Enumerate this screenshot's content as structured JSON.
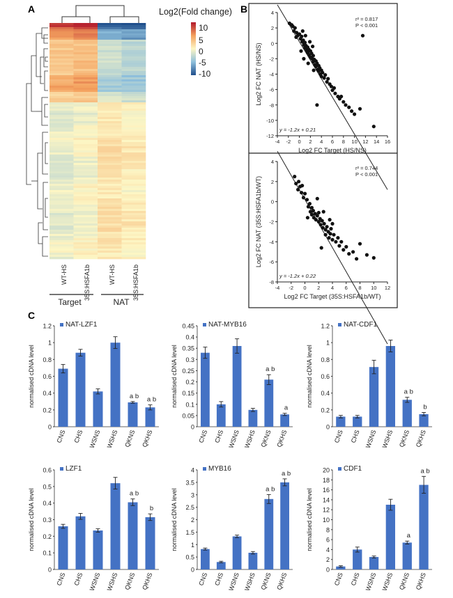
{
  "panel_labels": {
    "a": "A",
    "b": "B",
    "c": "C"
  },
  "heatmap": {
    "legend_title": "Log2(Fold change)",
    "legend_ticks": [
      "10",
      "5",
      "0",
      "-5",
      "-10"
    ],
    "columns": [
      "WT-HS",
      "35S:HSFA1b",
      "WT-HS",
      "35S:HSFA1b"
    ],
    "groups": [
      "Target",
      "NAT"
    ]
  },
  "chart_data": [
    {
      "type": "scatter",
      "panel": "B-top",
      "xlabel": "Log2 FC Target (HS/NS)",
      "ylabel": "Log2 FC NAT (HS/NS)",
      "xlim": [
        -4,
        16
      ],
      "ylim": [
        -12,
        4
      ],
      "xticks": [
        -4,
        -2,
        0,
        2,
        4,
        6,
        8,
        10,
        12,
        14,
        16
      ],
      "yticks": [
        4,
        2,
        0,
        -2,
        -4,
        -6,
        -8,
        -10,
        -12
      ],
      "stats": [
        "r² = 0.817",
        "P < 0.001"
      ],
      "equation": "y = -1.2x + 0.21",
      "fit": {
        "slope": -1.2,
        "intercept": 0.21
      },
      "points": [
        [
          -1.8,
          2.6
        ],
        [
          -1.4,
          2.4
        ],
        [
          -1.2,
          2.2
        ],
        [
          -1.0,
          1.6
        ],
        [
          -0.8,
          2.0
        ],
        [
          -0.5,
          1.4
        ],
        [
          -0.3,
          1.0
        ],
        [
          0.0,
          1.2
        ],
        [
          0.2,
          0.6
        ],
        [
          0.4,
          0.9
        ],
        [
          0.5,
          0.2
        ],
        [
          0.7,
          0.4
        ],
        [
          0.8,
          -0.2
        ],
        [
          1.0,
          0.1
        ],
        [
          1.0,
          -0.6
        ],
        [
          1.2,
          -0.3
        ],
        [
          1.3,
          -0.9
        ],
        [
          1.5,
          -0.5
        ],
        [
          1.5,
          -1.2
        ],
        [
          1.7,
          -0.8
        ],
        [
          1.8,
          -1.5
        ],
        [
          2.0,
          -1.0
        ],
        [
          2.0,
          -1.8
        ],
        [
          2.2,
          -1.3
        ],
        [
          2.3,
          -2.0
        ],
        [
          2.5,
          -1.6
        ],
        [
          2.5,
          -2.4
        ],
        [
          2.7,
          -2.1
        ],
        [
          2.8,
          -2.8
        ],
        [
          3.0,
          -2.3
        ],
        [
          3.0,
          -3.0
        ],
        [
          3.2,
          -2.6
        ],
        [
          3.3,
          -3.4
        ],
        [
          3.5,
          -2.9
        ],
        [
          3.5,
          -3.6
        ],
        [
          3.7,
          -3.2
        ],
        [
          3.8,
          -4.0
        ],
        [
          4.0,
          -3.5
        ],
        [
          4.0,
          -4.3
        ],
        [
          4.2,
          -3.8
        ],
        [
          4.5,
          -4.5
        ],
        [
          4.7,
          -4.1
        ],
        [
          5.0,
          -5.0
        ],
        [
          5.2,
          -4.6
        ],
        [
          5.5,
          -5.3
        ],
        [
          5.8,
          -5.6
        ],
        [
          6.0,
          -6.1
        ],
        [
          6.3,
          -5.8
        ],
        [
          6.5,
          -6.5
        ],
        [
          7.0,
          -6.9
        ],
        [
          7.3,
          -7.2
        ],
        [
          7.6,
          -6.9
        ],
        [
          8.0,
          -7.6
        ],
        [
          8.4,
          -8.0
        ],
        [
          9.0,
          -8.3
        ],
        [
          9.5,
          -8.8
        ],
        [
          10.0,
          -9.2
        ],
        [
          11.0,
          -8.5
        ],
        [
          11.5,
          1.0
        ],
        [
          13.5,
          -10.8
        ],
        [
          3.2,
          -8.0
        ],
        [
          0.8,
          -2.0
        ],
        [
          1.6,
          -2.6
        ],
        [
          2.6,
          -3.5
        ],
        [
          0.3,
          -1.0
        ],
        [
          -0.6,
          0.8
        ],
        [
          1.9,
          0.2
        ],
        [
          2.4,
          -0.4
        ],
        [
          1.1,
          1.0
        ],
        [
          0.6,
          1.6
        ]
      ]
    },
    {
      "type": "scatter",
      "panel": "B-bottom",
      "xlabel": "Log2 FC Target (35S:HSFA1b/WT)",
      "ylabel": "Log2 FC NAT (35S:HSFA1b/WT)",
      "xlim": [
        -4,
        12
      ],
      "ylim": [
        -8,
        4
      ],
      "xticks": [
        -4,
        -2,
        0,
        2,
        4,
        6,
        8,
        10,
        12
      ],
      "yticks": [
        4,
        2,
        0,
        -2,
        -4,
        -6,
        -8
      ],
      "stats": [
        "r² = 0.744",
        "P < 0.001"
      ],
      "equation": "y = -1.2x + 0.22",
      "fit": {
        "slope": -1.2,
        "intercept": 0.22
      },
      "points": [
        [
          -1.5,
          2.5
        ],
        [
          -1.3,
          1.8
        ],
        [
          -1.0,
          1.2
        ],
        [
          -0.9,
          2.0
        ],
        [
          -0.7,
          1.5
        ],
        [
          -0.5,
          0.9
        ],
        [
          -0.4,
          1.6
        ],
        [
          0.0,
          0.8
        ],
        [
          0.3,
          0.2
        ],
        [
          0.5,
          -0.5
        ],
        [
          0.7,
          -0.2
        ],
        [
          0.8,
          -1.0
        ],
        [
          1.0,
          -0.6
        ],
        [
          1.0,
          -1.3
        ],
        [
          1.2,
          -0.9
        ],
        [
          1.3,
          -1.6
        ],
        [
          1.5,
          -1.2
        ],
        [
          1.6,
          -1.8
        ],
        [
          1.8,
          -1.4
        ],
        [
          2.0,
          -2.0
        ],
        [
          2.0,
          -1.1
        ],
        [
          2.2,
          -1.7
        ],
        [
          2.3,
          -2.3
        ],
        [
          2.5,
          -1.9
        ],
        [
          2.6,
          -2.6
        ],
        [
          2.8,
          -2.2
        ],
        [
          3.0,
          -2.8
        ],
        [
          3.0,
          -3.3
        ],
        [
          3.2,
          -2.5
        ],
        [
          3.4,
          -3.0
        ],
        [
          3.5,
          -3.6
        ],
        [
          3.7,
          -3.2
        ],
        [
          3.8,
          -2.7
        ],
        [
          4.0,
          -3.8
        ],
        [
          4.2,
          -3.3
        ],
        [
          4.5,
          -4.0
        ],
        [
          4.8,
          -3.6
        ],
        [
          5.0,
          -4.4
        ],
        [
          5.3,
          -4.0
        ],
        [
          5.6,
          -4.8
        ],
        [
          6.0,
          -4.5
        ],
        [
          6.4,
          -5.2
        ],
        [
          7.0,
          -5.0
        ],
        [
          7.5,
          -5.7
        ],
        [
          8.0,
          -4.2
        ],
        [
          9.0,
          -5.3
        ],
        [
          10.0,
          -5.6
        ],
        [
          2.4,
          -4.6
        ],
        [
          4.0,
          -2.2
        ],
        [
          0.4,
          -1.6
        ],
        [
          1.8,
          0.3
        ],
        [
          -0.2,
          0.4
        ],
        [
          2.7,
          -1.0
        ],
        [
          3.6,
          -1.8
        ]
      ]
    },
    {
      "type": "bar",
      "panel": "C-NAT-LZF1",
      "series": [
        {
          "name": "NAT-LZF1",
          "values": [
            0.69,
            0.88,
            0.42,
            1.0,
            0.29,
            0.23
          ],
          "errors": [
            0.05,
            0.04,
            0.03,
            0.07,
            0.01,
            0.03
          ]
        }
      ],
      "categories": [
        "CNS",
        "CHS",
        "WSNS",
        "WSHS",
        "QKNS",
        "QKHS"
      ],
      "ylabel": "normalised cDNA level",
      "ylim": [
        0,
        1.2
      ],
      "yticks": [
        "0",
        "0.2",
        "0.4",
        "0.6",
        "0.8",
        "1",
        "1.2"
      ],
      "letters": [
        "",
        "",
        "",
        "",
        "a  b",
        "a  b"
      ]
    },
    {
      "type": "bar",
      "panel": "C-NAT-MYB16",
      "series": [
        {
          "name": "NAT-MYB16",
          "values": [
            0.33,
            0.1,
            0.36,
            0.075,
            0.21,
            0.055
          ],
          "errors": [
            0.025,
            0.012,
            0.032,
            0.007,
            0.022,
            0.005
          ]
        }
      ],
      "categories": [
        "CNS",
        "CHS",
        "WSNS",
        "WSHS",
        "QKNS",
        "QKHS"
      ],
      "ylabel": "normalised cDNA level",
      "ylim": [
        0,
        0.45
      ],
      "yticks": [
        "0",
        "0.05",
        "0.1",
        "0.15",
        "0.2",
        "0.25",
        "0.3",
        "0.35",
        "0.4",
        "0.45"
      ],
      "letters": [
        "",
        "",
        "",
        "",
        "a  b",
        "a"
      ]
    },
    {
      "type": "bar",
      "panel": "C-NAT-CDF1",
      "series": [
        {
          "name": "NAT-CDF1",
          "values": [
            0.12,
            0.12,
            0.71,
            0.96,
            0.32,
            0.15
          ],
          "errors": [
            0.015,
            0.015,
            0.08,
            0.07,
            0.03,
            0.02
          ]
        }
      ],
      "categories": [
        "CNS",
        "CHS",
        "WSNS",
        "WSHS",
        "QKNS",
        "QKHS"
      ],
      "ylabel": "normalised cDNA level",
      "ylim": [
        0,
        1.2
      ],
      "yticks": [
        "0",
        "0.2",
        "0.4",
        "0.6",
        "0.8",
        "1",
        "1.2"
      ],
      "letters": [
        "",
        "",
        "",
        "",
        "a  b",
        "b"
      ]
    },
    {
      "type": "bar",
      "panel": "C-LZF1",
      "series": [
        {
          "name": "LZF1",
          "values": [
            0.26,
            0.32,
            0.235,
            0.52,
            0.405,
            0.315
          ],
          "errors": [
            0.012,
            0.018,
            0.01,
            0.035,
            0.02,
            0.02
          ]
        }
      ],
      "categories": [
        "CNS",
        "CHS",
        "WSNS",
        "WSHS",
        "QKNS",
        "QKHS"
      ],
      "ylabel": "normalised cDNA level",
      "ylim": [
        0,
        0.6
      ],
      "yticks": [
        "0",
        "0.1",
        "0.2",
        "0.3",
        "0.4",
        "0.5",
        "0.6"
      ],
      "letters": [
        "",
        "",
        "",
        "",
        "a  b",
        "b"
      ]
    },
    {
      "type": "bar",
      "panel": "C-MYB16",
      "series": [
        {
          "name": "MYB16",
          "values": [
            0.82,
            0.3,
            1.33,
            0.67,
            2.83,
            3.5
          ],
          "errors": [
            0.04,
            0.03,
            0.05,
            0.05,
            0.18,
            0.14
          ]
        }
      ],
      "categories": [
        "CNS",
        "CHS",
        "WSNS",
        "WSHS",
        "QKNS",
        "QKHS"
      ],
      "ylabel": "normalised cDNA level",
      "ylim": [
        0,
        4
      ],
      "yticks": [
        "0",
        "0.5",
        "1",
        "1.5",
        "2",
        "2.5",
        "3",
        "3.5",
        "4"
      ],
      "letters": [
        "",
        "",
        "",
        "",
        "a  b",
        "a  b"
      ]
    },
    {
      "type": "bar",
      "panel": "C-CDF1",
      "series": [
        {
          "name": "CDF1",
          "values": [
            0.6,
            4.0,
            2.5,
            13.0,
            5.4,
            17.0
          ],
          "errors": [
            0.15,
            0.5,
            0.2,
            1.1,
            0.3,
            1.7
          ]
        }
      ],
      "categories": [
        "CNS",
        "CHS",
        "WSNS",
        "WSHS",
        "QKNS",
        "QKHS"
      ],
      "ylabel": "normalised cDNA level",
      "ylim": [
        0,
        20
      ],
      "yticks": [
        "0",
        "2",
        "4",
        "6",
        "8",
        "10",
        "12",
        "14",
        "16",
        "18",
        "20"
      ],
      "letters": [
        "",
        "",
        "",
        "",
        "a",
        "a  b"
      ]
    }
  ]
}
